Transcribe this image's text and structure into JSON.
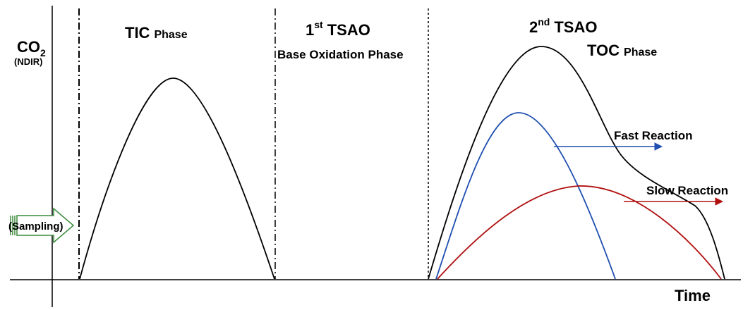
{
  "labels": {
    "y_main": "CO",
    "y_sub": "2",
    "y_unit": "(NDIR)",
    "x_axis": "Time",
    "sampling": "(Sampling)"
  },
  "phases": {
    "tic_main": "TIC",
    "tic_suffix": "Phase",
    "tsao1_num": "1",
    "tsao1_sup": "st",
    "tsao1_name": "TSAO",
    "tsao1_desc": "Base Oxidation Phase",
    "tsao2_num": "2",
    "tsao2_sup": "nd",
    "tsao2_name": "TSAO",
    "toc_main": "TOC",
    "toc_suffix": "Phase"
  },
  "annotations": {
    "fast": "Fast Reaction",
    "slow": "Slow Reaction"
  },
  "colors": {
    "total_curve": "#000000",
    "fast_curve": "#1f4fb0",
    "fast_text": "#1f4fb0",
    "slow_curve": "#b01010",
    "slow_text": "#b01010",
    "sampling_arrow": "#3a8a3a"
  }
}
